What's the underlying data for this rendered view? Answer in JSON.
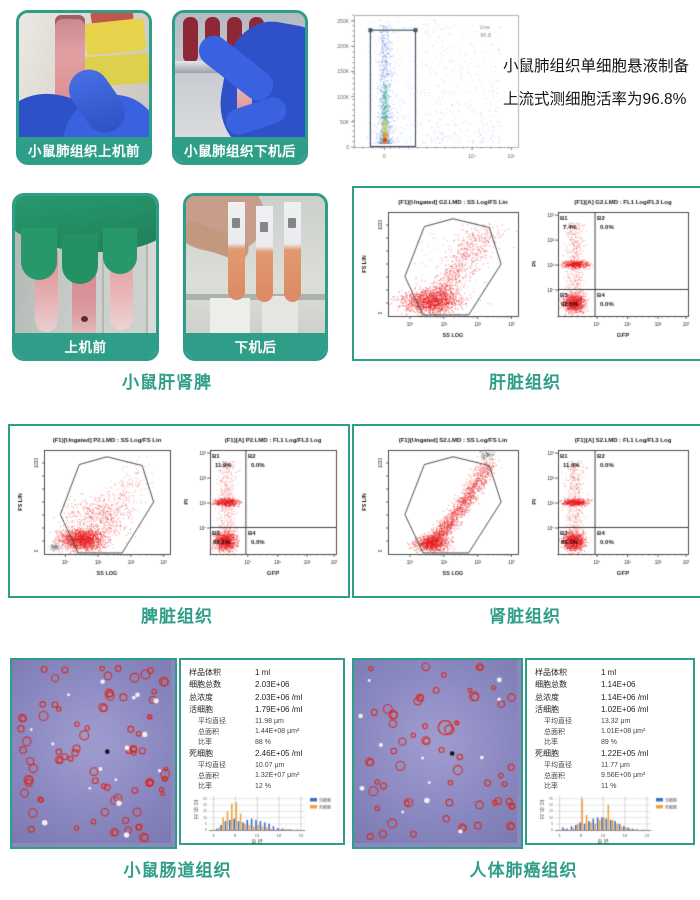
{
  "accent": "#2f9e88",
  "row1": {
    "photo_before": {
      "label": "小鼠肺组织上机前"
    },
    "photo_after": {
      "label": "小鼠肺组织下机后"
    },
    "note_line1": "小鼠肺组织单细胞悬液制备",
    "note_line2": "上流式测细胞活率为96.8%"
  },
  "viability": {
    "gate_label": "Live",
    "gate_value": "96.8",
    "yticks": [
      "250K",
      "200K",
      "150K",
      "100K",
      "50K",
      "0"
    ],
    "xticks": [
      "0",
      "10⁴",
      "10⁵"
    ]
  },
  "row2": {
    "photo_before": {
      "label": "上机前"
    },
    "photo_after": {
      "label": "下机后"
    },
    "photos_caption": "小鼠肝肾脾"
  },
  "facs_panels": [
    {
      "caption": "肝脏组织",
      "shape": "plume",
      "left": {
        "title": "(F1)[Ungated] G2.LMD : SS Log/FS Lin",
        "ylabel": "FS LIN",
        "xlabel": "SS LOG",
        "ymax": "1023",
        "ymin": "0",
        "xticks": [
          "10⁰",
          "10¹",
          "10²",
          "10³"
        ]
      },
      "right": {
        "title": "(F1)[A] G2.LMD : FL1 Log/FL3 Log",
        "ylabel": "PI",
        "xlabel": "GFP",
        "yticks": [
          "10³",
          "10²",
          "10¹",
          "10⁰"
        ],
        "xticks": [
          "10⁰",
          "10¹",
          "10²",
          "10³"
        ],
        "quadrants": [
          {
            "name": "B1",
            "value": "7.4%"
          },
          {
            "name": "B2",
            "value": "0.0%"
          },
          {
            "name": "B3",
            "value": "92.6%"
          },
          {
            "name": "B4",
            "value": "0.0%"
          }
        ]
      }
    },
    {
      "caption": "脾脏组织",
      "shape": "blob",
      "left": {
        "title": "(F1)[Ungated] P2.LMD : SS Log/FS Lin",
        "ylabel": "FS LIN",
        "xlabel": "SS LOG",
        "ymax": "1023",
        "ymin": "0",
        "xticks": [
          "10⁰",
          "10¹",
          "10²",
          "10³"
        ]
      },
      "right": {
        "title": "(F1)[A] P2.LMD : FL1 Log/FL3 Log",
        "ylabel": "PI",
        "xlabel": "GFP",
        "yticks": [
          "10³",
          "10²",
          "10¹",
          "10⁰"
        ],
        "xticks": [
          "10⁰",
          "10¹",
          "10²",
          "10³"
        ],
        "quadrants": [
          {
            "name": "B1",
            "value": "11.9%"
          },
          {
            "name": "B2",
            "value": "0.0%"
          },
          {
            "name": "B3",
            "value": "88.1%"
          },
          {
            "name": "B4",
            "value": "0.0%"
          }
        ]
      }
    },
    {
      "caption": "肾脏组织",
      "shape": "arc",
      "left": {
        "title": "(F1)[Ungated] S2.LMD : SS Log/FS Lin",
        "ylabel": "FS LIN",
        "xlabel": "SS LOG",
        "ymax": "1023",
        "ymin": "0",
        "xticks": [
          "10⁰",
          "10¹",
          "10²",
          "10³"
        ]
      },
      "right": {
        "title": "(F1)[A] S2.LMD : FL1 Log/FL3 Log",
        "ylabel": "PI",
        "xlabel": "GFP",
        "yticks": [
          "10³",
          "10²",
          "10¹",
          "10⁰"
        ],
        "xticks": [
          "10⁰",
          "10¹",
          "10²",
          "10³"
        ],
        "quadrants": [
          {
            "name": "B1",
            "value": "11.9%"
          },
          {
            "name": "B2",
            "value": "0.0%"
          },
          {
            "name": "B3",
            "value": "88.1%"
          },
          {
            "name": "B4",
            "value": "0.0%"
          }
        ]
      }
    }
  ],
  "samples": [
    {
      "caption": "小鼠肠道组织",
      "stats": [
        {
          "label": "样品体积",
          "value": "1 ml"
        },
        {
          "label": "细胞总数",
          "value": "2.03E+06"
        },
        {
          "label": "总浓度",
          "value": "2.03E+06 /ml"
        },
        {
          "label": "活细胞",
          "value": "1.79E+06 /ml"
        },
        {
          "label": "平均直径",
          "value": "11.98 μm",
          "sub": true
        },
        {
          "label": "总面积",
          "value": "1.44E+08 μm²",
          "sub": true
        },
        {
          "label": "比率",
          "value": "88 %",
          "sub": true
        },
        {
          "label": "死细胞",
          "value": "2.46E+05 /ml"
        },
        {
          "label": "平均直径",
          "value": "10.07 μm",
          "sub": true
        },
        {
          "label": "总面积",
          "value": "1.32E+07 μm²",
          "sub": true
        },
        {
          "label": "比率",
          "value": "12 %",
          "sub": true
        }
      ]
    },
    {
      "caption": "人体肺癌组织",
      "stats": [
        {
          "label": "样品体积",
          "value": "1 ml"
        },
        {
          "label": "细胞总数",
          "value": "1.14E+06"
        },
        {
          "label": "总浓度",
          "value": "1.14E+06 /ml"
        },
        {
          "label": "活细胞",
          "value": "1.02E+06 /ml"
        },
        {
          "label": "平均直径",
          "value": "13.32 μm",
          "sub": true
        },
        {
          "label": "总面积",
          "value": "1.01E+08 μm²",
          "sub": true
        },
        {
          "label": "比率",
          "value": "89 %",
          "sub": true
        },
        {
          "label": "死细胞",
          "value": "1.22E+05 /ml"
        },
        {
          "label": "平均直径",
          "value": "11.77 μm",
          "sub": true
        },
        {
          "label": "总面积",
          "value": "9.56E+06 μm²",
          "sub": true
        },
        {
          "label": "比率",
          "value": "11 %",
          "sub": true
        }
      ]
    }
  ],
  "chart_data": [
    {
      "id": "viability",
      "type": "scatter",
      "title": "",
      "gate_label": "Live",
      "gate_percent": 96.8,
      "yticks": [
        "250K",
        "200K",
        "150K",
        "100K",
        "50K",
        "0"
      ],
      "xticks": [
        "0",
        "10⁴",
        "10⁵"
      ],
      "ylim": [
        0,
        262000
      ],
      "legend_position": "none"
    },
    {
      "id": "liver_quadrants",
      "type": "scatter",
      "title": "(F1)[A] G2.LMD : FL1 Log/FL3 Log",
      "xlabel": "GFP",
      "ylabel": "PI",
      "series": [
        {
          "name": "B1",
          "value": 7.4
        },
        {
          "name": "B2",
          "value": 0.0
        },
        {
          "name": "B3",
          "value": 92.6
        },
        {
          "name": "B4",
          "value": 0.0
        }
      ]
    },
    {
      "id": "spleen_quadrants",
      "type": "scatter",
      "title": "(F1)[A] P2.LMD : FL1 Log/FL3 Log",
      "xlabel": "GFP",
      "ylabel": "PI",
      "series": [
        {
          "name": "B1",
          "value": 11.9
        },
        {
          "name": "B2",
          "value": 0.0
        },
        {
          "name": "B3",
          "value": 88.1
        },
        {
          "name": "B4",
          "value": 0.0
        }
      ]
    },
    {
      "id": "kidney_quadrants",
      "type": "scatter",
      "title": "(F1)[A] S2.LMD : FL1 Log/FL3 Log",
      "xlabel": "GFP",
      "ylabel": "PI",
      "series": [
        {
          "name": "B1",
          "value": 11.9
        },
        {
          "name": "B2",
          "value": 0.0
        },
        {
          "name": "B3",
          "value": 88.1
        },
        {
          "name": "B4",
          "value": 0.0
        }
      ]
    },
    {
      "id": "hist_intestine",
      "type": "bar",
      "xlabel": "直 径",
      "ylabel": "百分比",
      "legend": [
        "活细胞",
        "死细胞"
      ],
      "legend_position": "right",
      "grid": true,
      "x": [
        4,
        5,
        6,
        7,
        8,
        9,
        10,
        11,
        12,
        13,
        14,
        15,
        16,
        17,
        18,
        19,
        20,
        21,
        22
      ],
      "series": [
        {
          "name": "活细胞",
          "values": [
            1,
            4,
            7,
            8,
            9,
            7,
            6,
            8,
            9,
            8,
            7,
            6,
            5,
            3,
            1.5,
            1,
            0.5,
            0.5,
            0
          ]
        },
        {
          "name": "死细胞",
          "values": [
            2,
            10,
            15,
            21,
            22,
            13,
            5,
            4,
            3,
            4,
            3,
            2,
            1,
            0.5,
            0.5,
            1,
            0.8,
            0,
            0.5
          ]
        }
      ],
      "yticks": [
        0,
        5,
        10,
        15,
        20,
        25
      ],
      "xticks": [
        3,
        8,
        13,
        18,
        23
      ],
      "ylim": [
        0,
        27
      ]
    },
    {
      "id": "hist_lung",
      "type": "bar",
      "xlabel": "直 径",
      "ylabel": "百分比",
      "legend": [
        "活细胞",
        "死细胞"
      ],
      "legend_position": "right",
      "grid": true,
      "x": [
        4,
        5,
        6,
        7,
        8,
        9,
        10,
        11,
        12,
        13,
        14,
        15,
        16,
        17,
        18,
        19,
        20,
        21,
        22
      ],
      "series": [
        {
          "name": "活细胞",
          "values": [
            2,
            1,
            3,
            4,
            6,
            5,
            7,
            9,
            10,
            10,
            9,
            8,
            7,
            5,
            3,
            2,
            1,
            0.5,
            0
          ]
        },
        {
          "name": "死细胞",
          "values": [
            1,
            0,
            2,
            5,
            25,
            12,
            6,
            5,
            8,
            10,
            20,
            8,
            5,
            3,
            2,
            1,
            0.5,
            0,
            0.5
          ]
        }
      ],
      "yticks": [
        0,
        5,
        10,
        15,
        20,
        25
      ],
      "xticks": [
        3,
        8,
        13,
        18,
        23
      ],
      "ylim": [
        0,
        27
      ]
    }
  ]
}
